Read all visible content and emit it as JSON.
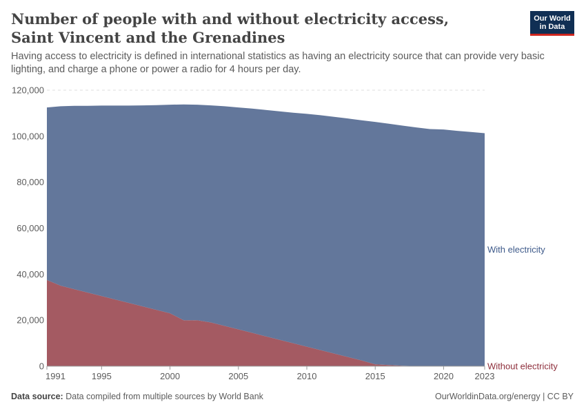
{
  "header": {
    "title": "Number of people with and without electricity access, Saint Vincent and the Grenadines",
    "subtitle": "Having access to electricity is defined in international statistics as having an electricity source that can provide very basic lighting, and charge a phone or power a radio for 4 hours per day.",
    "logo_line1": "Our World",
    "logo_line2": "in Data"
  },
  "footer": {
    "source_label": "Data source:",
    "source_text": "Data compiled from multiple sources by World Bank",
    "credit": "OurWorldinData.org/energy | CC BY"
  },
  "colors": {
    "with": "#63779b",
    "without": "#a45a62",
    "with_label": "#3e5a8a",
    "without_label": "#8e2f3c",
    "grid": "#dddddd"
  },
  "chart_data": {
    "type": "area",
    "stacked": true,
    "x": [
      1991,
      1992,
      1993,
      1994,
      1995,
      1996,
      1997,
      1998,
      1999,
      2000,
      2001,
      2002,
      2003,
      2004,
      2005,
      2006,
      2007,
      2008,
      2009,
      2010,
      2011,
      2012,
      2013,
      2014,
      2015,
      2016,
      2017,
      2018,
      2019,
      2020,
      2021,
      2022,
      2023
    ],
    "series": [
      {
        "name": "Without electricity",
        "color_key": "without",
        "values": [
          37500,
          35000,
          33500,
          32000,
          30500,
          29000,
          27500,
          26000,
          24500,
          23000,
          20000,
          20000,
          19000,
          17500,
          16000,
          14500,
          13000,
          11500,
          10000,
          8500,
          7000,
          5500,
          4000,
          2500,
          800,
          500,
          200,
          100,
          100,
          100,
          100,
          100,
          100
        ]
      },
      {
        "name": "With electricity",
        "color_key": "with",
        "values": [
          75000,
          78000,
          79700,
          81200,
          82800,
          84300,
          85800,
          87400,
          89000,
          90700,
          93800,
          93700,
          94400,
          95500,
          96500,
          97500,
          98400,
          99300,
          100200,
          101200,
          102100,
          102900,
          103700,
          104400,
          105400,
          104900,
          104400,
          103700,
          103000,
          102800,
          102200,
          101700,
          101200
        ]
      }
    ],
    "ylim": [
      0,
      120000
    ],
    "y_ticks": [
      0,
      20000,
      40000,
      60000,
      80000,
      100000,
      120000
    ],
    "y_tick_labels": [
      "0",
      "20,000",
      "40,000",
      "60,000",
      "80,000",
      "100,000",
      "120,000"
    ],
    "x_ticks": [
      1991,
      1995,
      2000,
      2005,
      2010,
      2015,
      2020,
      2023
    ],
    "x_tick_labels": [
      "1991",
      "1995",
      "2000",
      "2005",
      "2010",
      "2015",
      "2020",
      "2023"
    ],
    "legend_placement": "right, inline at series end",
    "grid": "horizontal dashed"
  }
}
